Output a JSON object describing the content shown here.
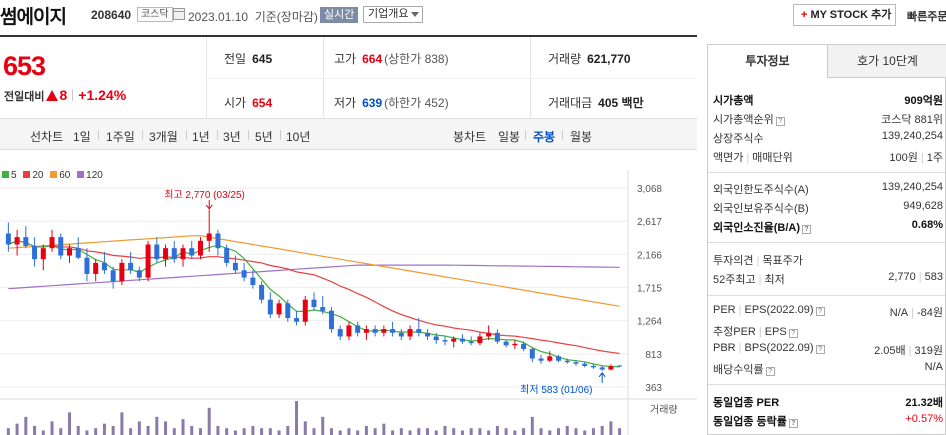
{
  "header": {
    "stock_name": "썸에이지",
    "stock_code": "208640",
    "market": "코스닥",
    "date": "2023.01.10  기준(장마감)",
    "realtime": "실시간",
    "overview": "기업개요",
    "mystock": "MY STOCK 추가",
    "mystock_plus": "+",
    "quick": "빠른주문"
  },
  "price": {
    "current": "653",
    "change_label": "전일대비",
    "change_value": "8",
    "change_pct": "+1.24%"
  },
  "quote": {
    "prev_label": "전일",
    "prev_value": "645",
    "high_label": "고가",
    "high_value": "664",
    "upper_limit": "(상한가 838)",
    "volume_label": "거래량",
    "volume_value": "621,770",
    "open_label": "시가",
    "open_value": "654",
    "low_label": "저가",
    "low_value": "639",
    "lower_limit": "(하한가 452)",
    "amount_label": "거래대금",
    "amount_value": "405 백만"
  },
  "period_bar": {
    "line_label": "선차트",
    "line_items": [
      "1일",
      "1주일",
      "3개월",
      "1년",
      "3년",
      "5년",
      "10년"
    ],
    "candle_label": "봉차트",
    "candle_items": [
      "일봉",
      "주봉",
      "월봉"
    ],
    "active": "주봉"
  },
  "colors": {
    "up": "#e60012",
    "down": "#2e6fd8",
    "ma5": "#40b040",
    "ma20": "#e84040",
    "ma60": "#f09a30",
    "ma120": "#a070c8",
    "volume": "#8a7aa8"
  },
  "chart_data": {
    "type": "candlestick",
    "legend": [
      {
        "name": "5",
        "color": "#40b040"
      },
      {
        "name": "20",
        "color": "#e84040"
      },
      {
        "name": "60",
        "color": "#f09a30"
      },
      {
        "name": "120",
        "color": "#a070c8"
      }
    ],
    "ylim": [
      363,
      3068
    ],
    "y_ticks": [
      "3,068",
      "2,617",
      "2,166",
      "1,715",
      "1,264",
      "813",
      "363"
    ],
    "high_annotation": "최고 2,770 (03/25)",
    "low_annotation": "최저 583 (01/06)",
    "volume_label": "거래량",
    "candles": [
      [
        2450,
        2600,
        2200,
        2300
      ],
      [
        2300,
        2500,
        2150,
        2400
      ],
      [
        2400,
        2550,
        2250,
        2280
      ],
      [
        2280,
        2400,
        2000,
        2100
      ],
      [
        2100,
        2300,
        1950,
        2250
      ],
      [
        2250,
        2500,
        2200,
        2400
      ],
      [
        2400,
        2450,
        2100,
        2150
      ],
      [
        2150,
        2300,
        2050,
        2250
      ],
      [
        2250,
        2400,
        2100,
        2120
      ],
      [
        2120,
        2250,
        1800,
        1900
      ],
      [
        1900,
        2100,
        1800,
        2050
      ],
      [
        2050,
        2200,
        1900,
        1950
      ],
      [
        1950,
        2000,
        1700,
        1800
      ],
      [
        1800,
        2100,
        1750,
        2050
      ],
      [
        2050,
        2200,
        1900,
        1950
      ],
      [
        1950,
        2000,
        1800,
        1850
      ],
      [
        1850,
        2350,
        1800,
        2300
      ],
      [
        2300,
        2400,
        2050,
        2100
      ],
      [
        2100,
        2300,
        2000,
        2250
      ],
      [
        2250,
        2350,
        2050,
        2100
      ],
      [
        2100,
        2300,
        2000,
        2250
      ],
      [
        2250,
        2350,
        2100,
        2150
      ],
      [
        2150,
        2400,
        2100,
        2350
      ],
      [
        2350,
        2770,
        2200,
        2450
      ],
      [
        2450,
        2500,
        2150,
        2250
      ],
      [
        2250,
        2300,
        2000,
        2050
      ],
      [
        2050,
        2150,
        1900,
        1950
      ],
      [
        1950,
        2050,
        1800,
        1850
      ],
      [
        1850,
        1950,
        1700,
        1750
      ],
      [
        1750,
        1800,
        1500,
        1550
      ],
      [
        1550,
        1650,
        1300,
        1350
      ],
      [
        1350,
        1550,
        1300,
        1500
      ],
      [
        1500,
        1550,
        1250,
        1300
      ],
      [
        1300,
        1400,
        1200,
        1250
      ],
      [
        1250,
        1600,
        1200,
        1550
      ],
      [
        1550,
        1650,
        1400,
        1450
      ],
      [
        1450,
        1600,
        1350,
        1400
      ],
      [
        1400,
        1450,
        1100,
        1150
      ],
      [
        1150,
        1200,
        1000,
        1050
      ],
      [
        1050,
        1250,
        1000,
        1200
      ],
      [
        1200,
        1250,
        1050,
        1100
      ],
      [
        1100,
        1200,
        1000,
        1150
      ],
      [
        1150,
        1200,
        1050,
        1100
      ],
      [
        1100,
        1200,
        1050,
        1150
      ],
      [
        1150,
        1250,
        1050,
        1100
      ],
      [
        1100,
        1150,
        1000,
        1050
      ],
      [
        1050,
        1200,
        1000,
        1150
      ],
      [
        1150,
        1300,
        1050,
        1100
      ],
      [
        1100,
        1150,
        1000,
        1050
      ],
      [
        1050,
        1100,
        950,
        1000
      ],
      [
        1000,
        1050,
        930,
        980
      ],
      [
        980,
        1050,
        900,
        1020
      ],
      [
        1020,
        1080,
        950,
        980
      ],
      [
        980,
        1050,
        930,
        960
      ],
      [
        960,
        1100,
        930,
        1050
      ],
      [
        1050,
        1200,
        1000,
        1100
      ],
      [
        1100,
        1150,
        950,
        980
      ],
      [
        980,
        1000,
        900,
        930
      ],
      [
        930,
        1000,
        880,
        950
      ],
      [
        950,
        980,
        850,
        880
      ],
      [
        880,
        900,
        700,
        750
      ],
      [
        750,
        800,
        680,
        720
      ],
      [
        720,
        850,
        700,
        780
      ],
      [
        780,
        800,
        700,
        720
      ],
      [
        720,
        750,
        680,
        700
      ],
      [
        700,
        730,
        650,
        680
      ],
      [
        680,
        700,
        630,
        650
      ],
      [
        650,
        680,
        610,
        630
      ],
      [
        630,
        650,
        583,
        600
      ],
      [
        600,
        670,
        590,
        645
      ],
      [
        654,
        664,
        639,
        653
      ]
    ],
    "volumes": [
      30,
      50,
      80,
      40,
      20,
      60,
      30,
      100,
      40,
      20,
      30,
      50,
      40,
      100,
      30,
      60,
      40,
      80,
      60,
      30,
      70,
      40,
      30,
      120,
      40,
      30,
      20,
      30,
      40,
      30,
      30,
      20,
      40,
      150,
      60,
      30,
      80,
      30,
      20,
      30,
      20,
      40,
      30,
      50,
      20,
      30,
      20,
      30,
      30,
      20,
      40,
      30,
      20,
      30,
      30,
      20,
      40,
      30,
      20,
      30,
      80,
      30,
      20,
      30,
      40,
      30,
      20,
      30,
      40,
      60,
      30
    ]
  },
  "invest": {
    "tab_active": "투자정보",
    "tab_other": "호가 10단계",
    "market_cap_label": "시가총액",
    "market_cap_value": "909억원",
    "cap_rank_label": "시가총액순위",
    "cap_rank_value": "코스닥 881위",
    "shares_label": "상장주식수",
    "shares_value": "139,240,254",
    "par_label": "액면가",
    "unit_label": "매매단위",
    "par_value": "100원",
    "unit_value": "1주",
    "foreign_limit_label": "외국인한도주식수(A)",
    "foreign_limit_value": "139,240,254",
    "foreign_hold_label": "외국인보유주식수(B)",
    "foreign_hold_value": "949,628",
    "foreign_rate_label": "외국인소진율(B/A)",
    "foreign_rate_value": "0.68%",
    "opinion_label": "투자의견",
    "target_label": "목표주가",
    "week52_label": "52주최고",
    "week52_low_label": "최저",
    "week52_high": "2,770",
    "week52_low": "583",
    "per_label": "PER",
    "eps_label": "EPS(2022.09)",
    "per_value": "N/A",
    "eps_value": "-84원",
    "est_per_label": "추정PER",
    "est_eps_label": "EPS",
    "pbr_label": "PBR",
    "bps_label": "BPS(2022.09)",
    "pbr_value": "2.05배",
    "bps_value": "319원",
    "div_label": "배당수익률",
    "div_value": "N/A",
    "ind_per_label": "동일업종 PER",
    "ind_per_value": "21.32배",
    "ind_rate_label": "동일업종 등락률",
    "ind_rate_value": "+0.57%",
    "q": "?"
  }
}
